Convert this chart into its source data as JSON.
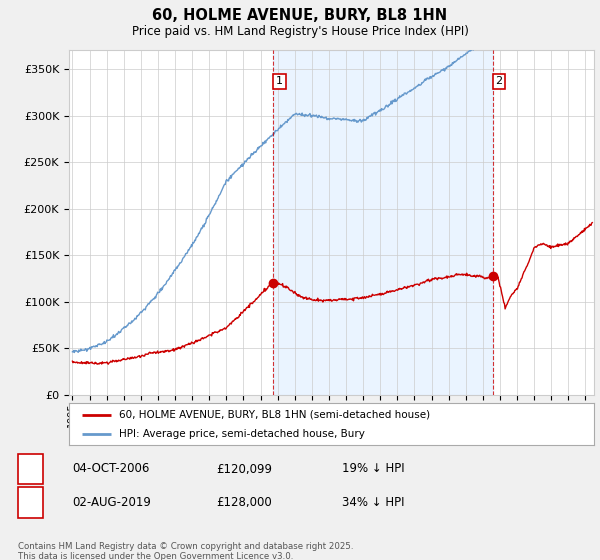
{
  "title": "60, HOLME AVENUE, BURY, BL8 1HN",
  "subtitle": "Price paid vs. HM Land Registry's House Price Index (HPI)",
  "ylabel_ticks": [
    "£0",
    "£50K",
    "£100K",
    "£150K",
    "£200K",
    "£250K",
    "£300K",
    "£350K"
  ],
  "ytick_values": [
    0,
    50000,
    100000,
    150000,
    200000,
    250000,
    300000,
    350000
  ],
  "ylim": [
    0,
    370000
  ],
  "xlim_start": 1994.8,
  "xlim_end": 2025.5,
  "marker1_x": 2006.75,
  "marker1_y": 120099,
  "marker2_x": 2019.58,
  "marker2_y": 128000,
  "hpi_color": "#6699cc",
  "hpi_fill_color": "#ddeeff",
  "price_color": "#cc0000",
  "background_color": "#f0f0f0",
  "plot_bg_color": "#ffffff",
  "grid_color": "#cccccc",
  "legend_label_price": "60, HOLME AVENUE, BURY, BL8 1HN (semi-detached house)",
  "legend_label_hpi": "HPI: Average price, semi-detached house, Bury",
  "footer": "Contains HM Land Registry data © Crown copyright and database right 2025.\nThis data is licensed under the Open Government Licence v3.0.",
  "xtick_years": [
    1995,
    1996,
    1997,
    1998,
    1999,
    2000,
    2001,
    2002,
    2003,
    2004,
    2005,
    2006,
    2007,
    2008,
    2009,
    2010,
    2011,
    2012,
    2013,
    2014,
    2015,
    2016,
    2017,
    2018,
    2019,
    2020,
    2021,
    2022,
    2023,
    2024,
    2025
  ],
  "marker1_label": "1",
  "marker1_date": "04-OCT-2006",
  "marker1_price": "£120,099",
  "marker1_hpi": "19% ↓ HPI",
  "marker2_label": "2",
  "marker2_date": "02-AUG-2019",
  "marker2_price": "£128,000",
  "marker2_hpi": "34% ↓ HPI"
}
